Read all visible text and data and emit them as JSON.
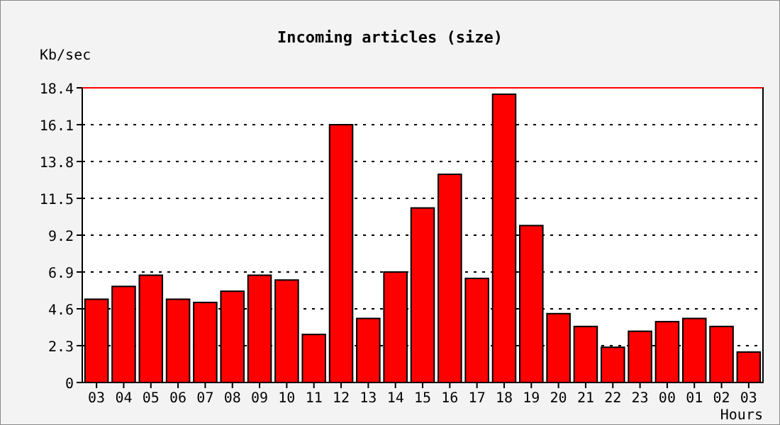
{
  "chart_data": {
    "type": "bar",
    "title": "Incoming articles (size)",
    "ylabel": "Kb/sec",
    "xlabel": "Hours",
    "categories": [
      "03",
      "04",
      "05",
      "06",
      "07",
      "08",
      "09",
      "10",
      "11",
      "12",
      "13",
      "14",
      "15",
      "16",
      "17",
      "18",
      "19",
      "20",
      "21",
      "22",
      "23",
      "00",
      "01",
      "02",
      "03"
    ],
    "values": [
      5.2,
      6.0,
      6.7,
      5.2,
      5.0,
      5.7,
      6.7,
      6.4,
      3.0,
      16.1,
      4.0,
      6.9,
      10.9,
      13.0,
      6.5,
      18.0,
      9.8,
      4.3,
      3.5,
      2.2,
      3.2,
      3.8,
      4.0,
      3.5,
      1.9
    ],
    "color": "#ff0000",
    "ylim": [
      0,
      18.4
    ],
    "yticks": [
      0,
      2.3,
      4.6,
      6.9,
      9.2,
      11.5,
      13.8,
      16.1,
      18.4
    ],
    "grid": "y",
    "ref_lines": [
      {
        "axis": "y",
        "value": 18.4,
        "color": "#ff0000"
      }
    ]
  }
}
